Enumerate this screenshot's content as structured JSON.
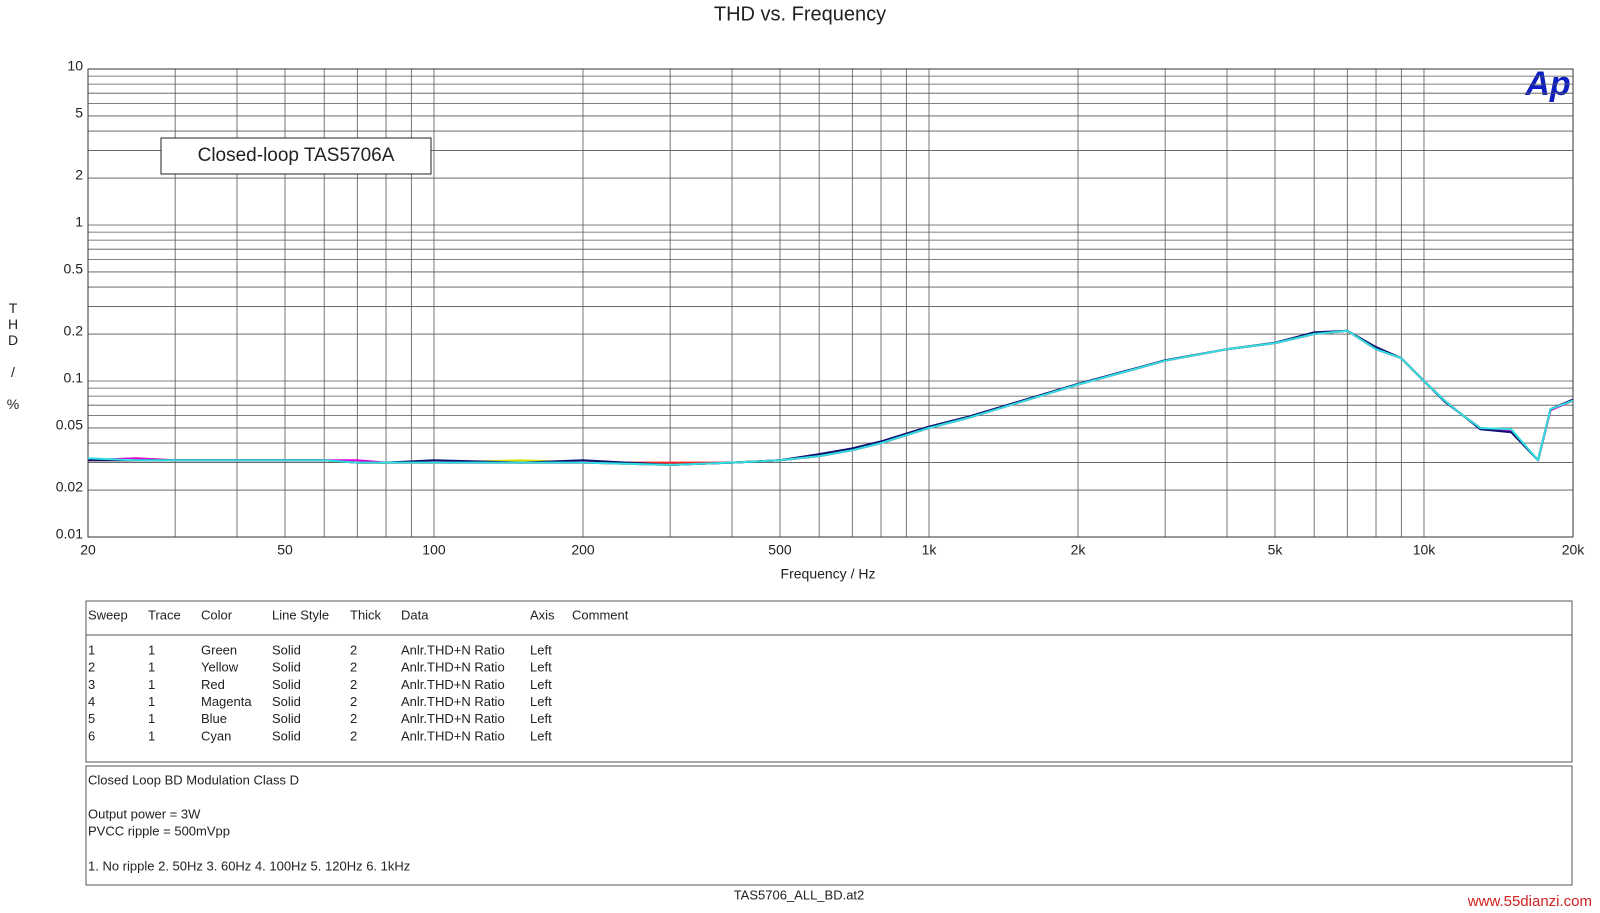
{
  "chart_data": {
    "type": "line",
    "title": "THD vs. Frequency",
    "xlabel": "Frequency / Hz",
    "ylabel": "THD / %",
    "annotation": "Closed-loop TAS5706A",
    "log_x": true,
    "log_y": true,
    "grid": true,
    "xlim": [
      20,
      20000
    ],
    "ylim": [
      0.01,
      10
    ],
    "xticks": [
      20,
      50,
      100,
      200,
      500,
      {
        "value": 1000,
        "label": "1k"
      },
      {
        "value": 2000,
        "label": "2k"
      },
      {
        "value": 5000,
        "label": "5k"
      },
      {
        "value": 10000,
        "label": "10k"
      },
      {
        "value": 20000,
        "label": "20k"
      }
    ],
    "xminorticks": [
      30,
      40,
      60,
      70,
      80,
      90,
      300,
      400,
      600,
      700,
      800,
      900,
      3000,
      4000,
      6000,
      7000,
      8000,
      9000
    ],
    "yticks": [
      0.01,
      0.02,
      0.05,
      0.1,
      0.2,
      0.5,
      1,
      2,
      5,
      10
    ],
    "yminorticks": [
      0.03,
      0.04,
      0.06,
      0.07,
      0.08,
      0.09,
      0.3,
      0.4,
      0.6,
      0.7,
      0.8,
      0.9,
      3,
      4,
      6,
      7,
      8,
      9
    ],
    "x": [
      20,
      25,
      30,
      40,
      50,
      60,
      70,
      80,
      100,
      150,
      200,
      300,
      400,
      500,
      600,
      700,
      800,
      1000,
      1200,
      1500,
      2000,
      2500,
      3000,
      4000,
      5000,
      6000,
      7000,
      8000,
      9000,
      10000,
      11000,
      12000,
      13000,
      15000,
      17000,
      18000,
      20000
    ],
    "series": [
      {
        "name": "Green",
        "color": "#00d000",
        "values": [
          0.031,
          0.031,
          0.031,
          0.031,
          0.031,
          0.031,
          0.03,
          0.03,
          0.03,
          0.03,
          0.03,
          0.029,
          0.03,
          0.031,
          0.033,
          0.036,
          0.04,
          0.05,
          0.058,
          0.072,
          0.095,
          0.115,
          0.135,
          0.16,
          0.175,
          0.2,
          0.21,
          0.16,
          0.14,
          0.1,
          0.075,
          0.06,
          0.05,
          0.048,
          0.031,
          0.065,
          0.075
        ]
      },
      {
        "name": "Yellow",
        "color": "#e0e000",
        "values": [
          0.031,
          0.032,
          0.031,
          0.031,
          0.031,
          0.031,
          0.03,
          0.03,
          0.03,
          0.031,
          0.03,
          0.029,
          0.03,
          0.031,
          0.033,
          0.036,
          0.04,
          0.05,
          0.058,
          0.072,
          0.095,
          0.115,
          0.135,
          0.16,
          0.175,
          0.2,
          0.21,
          0.16,
          0.14,
          0.1,
          0.075,
          0.06,
          0.05,
          0.048,
          0.031,
          0.065,
          0.075
        ]
      },
      {
        "name": "Red",
        "color": "#ff2020",
        "values": [
          0.031,
          0.031,
          0.031,
          0.031,
          0.031,
          0.031,
          0.03,
          0.03,
          0.03,
          0.03,
          0.03,
          0.03,
          0.03,
          0.031,
          0.033,
          0.036,
          0.04,
          0.05,
          0.058,
          0.072,
          0.095,
          0.115,
          0.135,
          0.16,
          0.175,
          0.2,
          0.21,
          0.16,
          0.14,
          0.1,
          0.075,
          0.06,
          0.05,
          0.048,
          0.031,
          0.065,
          0.075
        ]
      },
      {
        "name": "Magenta",
        "color": "#e000e0",
        "values": [
          0.031,
          0.032,
          0.031,
          0.031,
          0.031,
          0.031,
          0.031,
          0.03,
          0.03,
          0.03,
          0.03,
          0.029,
          0.03,
          0.031,
          0.033,
          0.036,
          0.04,
          0.05,
          0.058,
          0.072,
          0.095,
          0.115,
          0.135,
          0.16,
          0.175,
          0.2,
          0.21,
          0.16,
          0.14,
          0.1,
          0.075,
          0.06,
          0.05,
          0.048,
          0.031,
          0.065,
          0.075
        ]
      },
      {
        "name": "Blue",
        "color": "#101070",
        "values": [
          0.031,
          0.031,
          0.031,
          0.031,
          0.031,
          0.031,
          0.03,
          0.03,
          0.031,
          0.03,
          0.031,
          0.029,
          0.03,
          0.031,
          0.034,
          0.037,
          0.041,
          0.051,
          0.059,
          0.073,
          0.096,
          0.116,
          0.136,
          0.16,
          0.176,
          0.205,
          0.21,
          0.165,
          0.14,
          0.1,
          0.074,
          0.06,
          0.049,
          0.047,
          0.031,
          0.066,
          0.076
        ]
      },
      {
        "name": "Cyan",
        "color": "#30e0e0",
        "values": [
          0.032,
          0.031,
          0.031,
          0.031,
          0.031,
          0.031,
          0.03,
          0.03,
          0.03,
          0.03,
          0.03,
          0.029,
          0.03,
          0.031,
          0.033,
          0.036,
          0.04,
          0.05,
          0.058,
          0.072,
          0.095,
          0.115,
          0.135,
          0.16,
          0.175,
          0.2,
          0.21,
          0.16,
          0.14,
          0.1,
          0.075,
          0.06,
          0.05,
          0.049,
          0.031,
          0.066,
          0.075
        ]
      }
    ]
  },
  "logo": "Ap",
  "legend_table": {
    "columns": [
      "Sweep",
      "Trace",
      "Color",
      "Line Style",
      "Thick",
      "Data",
      "Axis",
      "Comment"
    ],
    "rows": [
      [
        "1",
        "1",
        "Green",
        "Solid",
        "2",
        "Anlr.THD+N Ratio",
        "Left"
      ],
      [
        "2",
        "1",
        "Yellow",
        "Solid",
        "2",
        "Anlr.THD+N Ratio",
        "Left"
      ],
      [
        "3",
        "1",
        "Red",
        "Solid",
        "2",
        "Anlr.THD+N Ratio",
        "Left"
      ],
      [
        "4",
        "1",
        "Magenta",
        "Solid",
        "2",
        "Anlr.THD+N Ratio",
        "Left"
      ],
      [
        "5",
        "1",
        "Blue",
        "Solid",
        "2",
        "Anlr.THD+N Ratio",
        "Left"
      ],
      [
        "6",
        "1",
        "Cyan",
        "Solid",
        "2",
        "Anlr.THD+N Ratio",
        "Left"
      ]
    ]
  },
  "notes": [
    "Closed Loop BD Modulation Class D",
    "Output power = 3W",
    "PVCC ripple = 500mVpp",
    "1. No ripple  2. 50Hz  3. 60Hz  4. 100Hz  5. 120Hz  6. 1kHz"
  ],
  "footer": "TAS5706_ALL_BD.at2",
  "watermark": "www.55dianzi.com"
}
